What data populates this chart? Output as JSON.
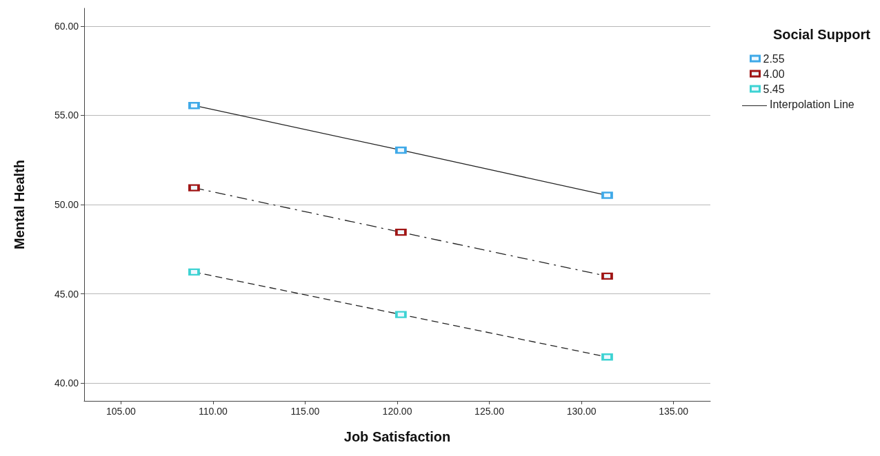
{
  "chart_data": {
    "type": "line",
    "xlabel": "Job Satisfaction",
    "ylabel": "Mental Health",
    "legend_title": "Social Support",
    "x": [
      108.97,
      120.2,
      131.4
    ],
    "series": [
      {
        "name": "2.55",
        "color": "#3fa9e8",
        "values": [
          55.55,
          53.05,
          50.52
        ],
        "line_style": "solid"
      },
      {
        "name": "4.00",
        "color": "#a01515",
        "values": [
          50.94,
          48.45,
          45.99
        ],
        "line_style": "dashdot"
      },
      {
        "name": "5.45",
        "color": "#3ed3d3",
        "values": [
          46.22,
          43.84,
          41.46
        ],
        "line_style": "dashed"
      }
    ],
    "annotations": [
      "Interpolation Line"
    ],
    "xlim": [
      103,
      137
    ],
    "xticks": [
      {
        "value": 105,
        "label": "105.00"
      },
      {
        "value": 110,
        "label": "110.00"
      },
      {
        "value": 115,
        "label": "115.00"
      },
      {
        "value": 120,
        "label": "120.00"
      },
      {
        "value": 125,
        "label": "125.00"
      },
      {
        "value": 130,
        "label": "130.00"
      },
      {
        "value": 135,
        "label": "135.00"
      }
    ],
    "ylim": [
      39,
      61
    ],
    "yticks": [
      {
        "value": 40,
        "label": "40.00"
      },
      {
        "value": 45,
        "label": "45.00"
      },
      {
        "value": 50,
        "label": "50.00"
      },
      {
        "value": 55,
        "label": "55.00"
      },
      {
        "value": 60,
        "label": "60.00"
      }
    ],
    "grid": "y",
    "legend": "top right",
    "marker": "square"
  }
}
